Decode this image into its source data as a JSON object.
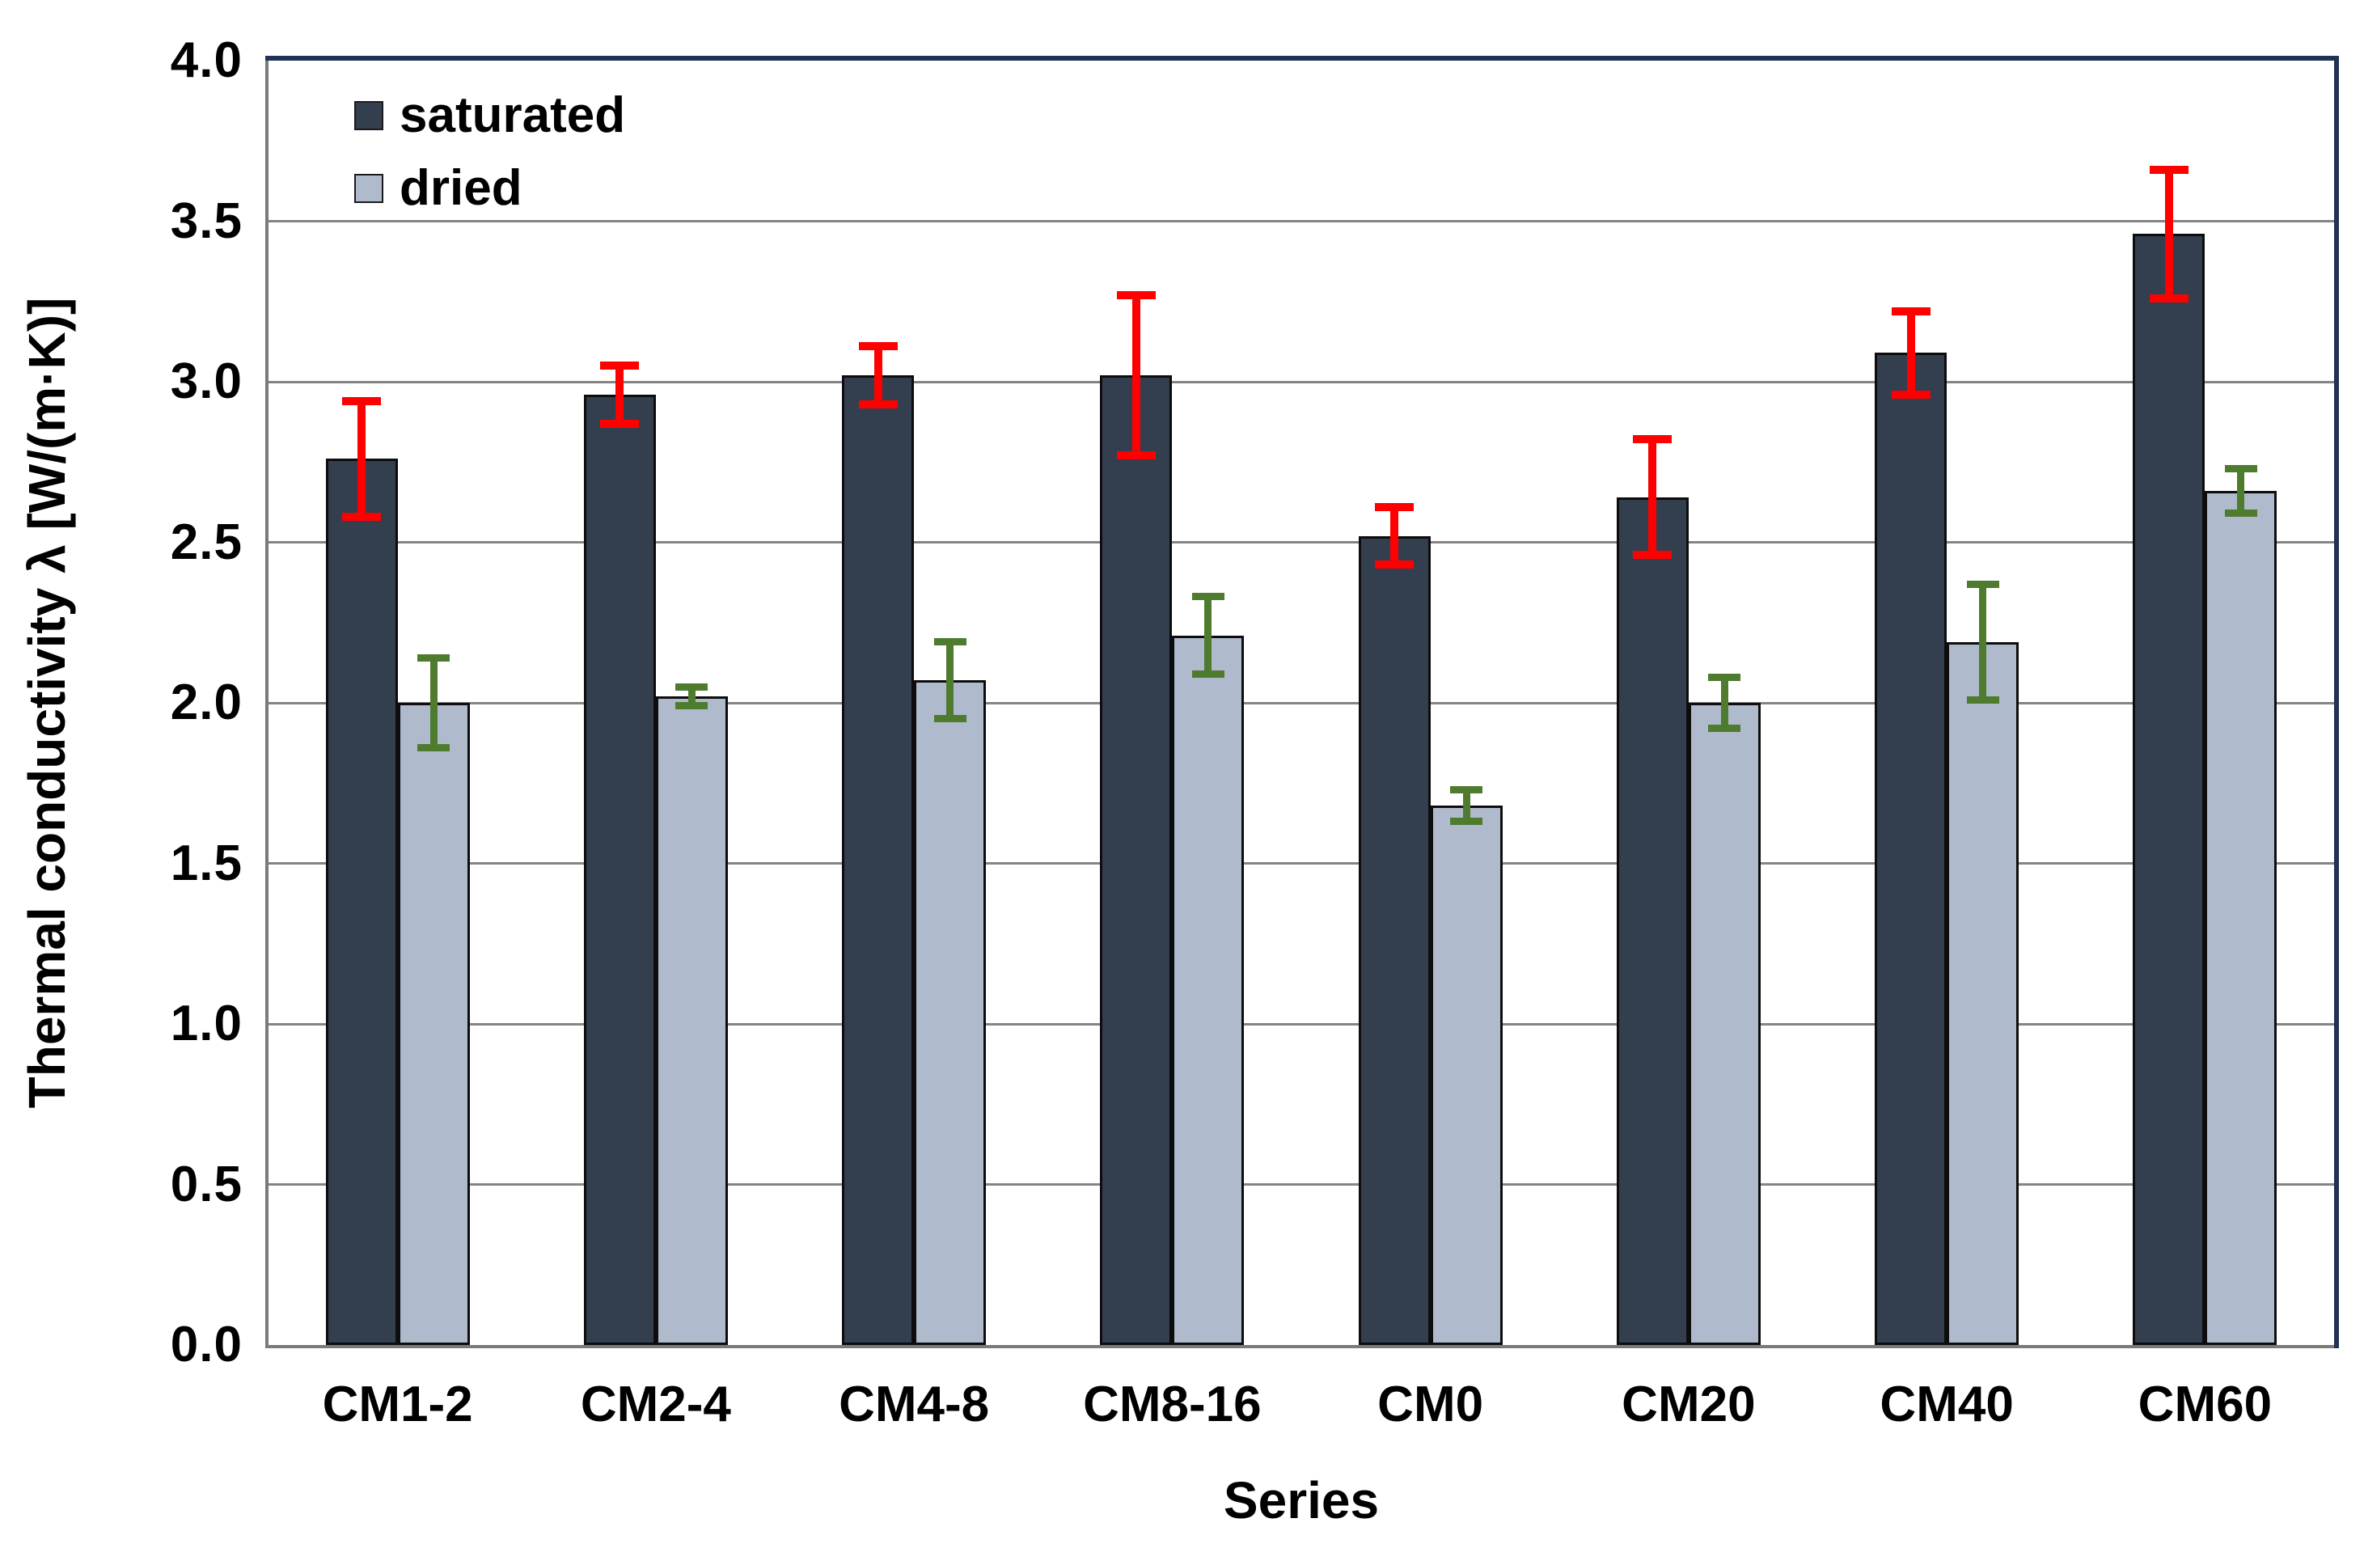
{
  "chart_data": {
    "type": "bar",
    "title": "",
    "xlabel": "Series",
    "ylabel": "Thermal conductivity λ [W/(m·K)]",
    "ylim": [
      0.0,
      4.0
    ],
    "ytick_step": 0.5,
    "yticks": [
      "4.0",
      "3.5",
      "3.0",
      "2.5",
      "2.0",
      "1.5",
      "1.0",
      "0.5",
      "0.0"
    ],
    "grid": "horizontal",
    "legend_position": "top-left-inside",
    "categories": [
      "CM1-2",
      "CM2-4",
      "CM4-8",
      "CM8-16",
      "CM0",
      "CM20",
      "CM40",
      "CM60"
    ],
    "series": [
      {
        "name": "saturated",
        "color": "#333E4F",
        "error_color": "#FE0000",
        "values": [
          2.76,
          2.96,
          3.02,
          3.02,
          2.52,
          2.64,
          3.09,
          3.46
        ],
        "errors": [
          0.18,
          0.09,
          0.09,
          0.25,
          0.09,
          0.18,
          0.13,
          0.2
        ]
      },
      {
        "name": "dried",
        "color": "#AFBACD",
        "error_color": "#4E7B2E",
        "values": [
          2.0,
          2.02,
          2.07,
          2.21,
          1.68,
          2.0,
          2.19,
          2.66
        ],
        "errors": [
          0.14,
          0.03,
          0.12,
          0.12,
          0.05,
          0.08,
          0.18,
          0.07
        ]
      }
    ],
    "colors": {
      "gridline": "#848484",
      "axis_gray": "#7A7A7A",
      "border_dark": "#203354",
      "bar_border": "#0D0D0D",
      "text": "#000000",
      "background": "#FFFFFF"
    }
  }
}
